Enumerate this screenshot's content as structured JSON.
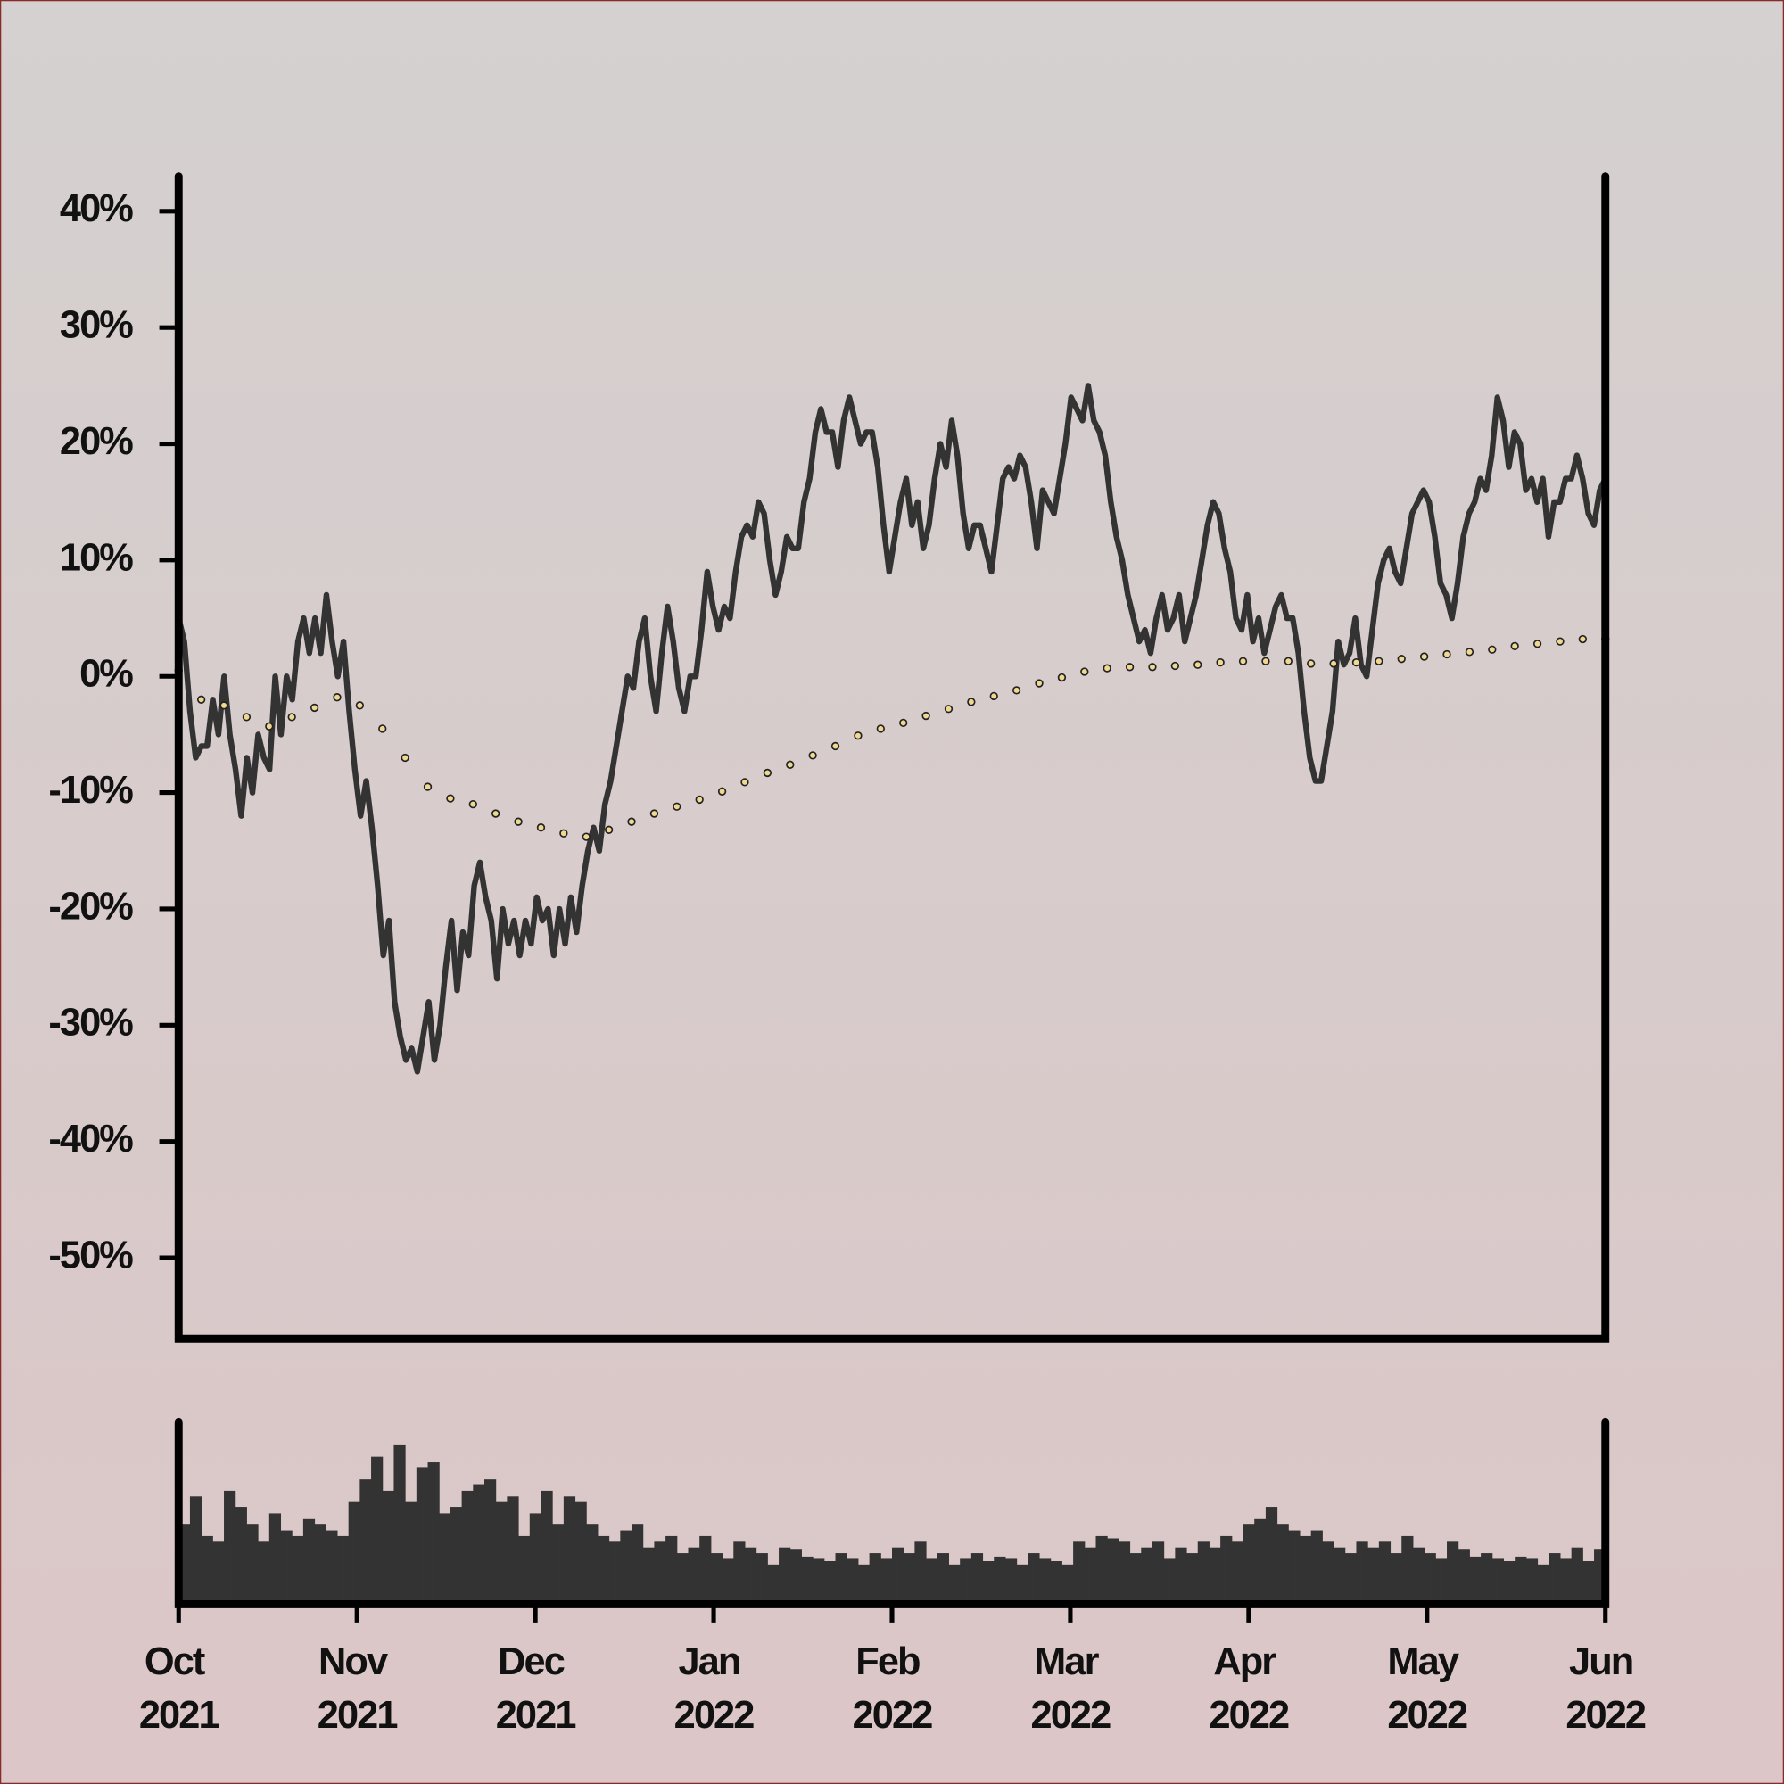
{
  "chart_data": [
    {
      "type": "line",
      "xlim": [
        "2021-10",
        "2022-06"
      ],
      "ylim": [
        -57,
        43
      ],
      "yticks": [
        {
          "value": 40,
          "label": "40%"
        },
        {
          "value": 30,
          "label": "30%"
        },
        {
          "value": 20,
          "label": "20%"
        },
        {
          "value": 10,
          "label": "10%"
        },
        {
          "value": 0,
          "label": "0%"
        },
        {
          "value": -10,
          "label": "-10%"
        },
        {
          "value": -20,
          "label": "-20%"
        },
        {
          "value": -30,
          "label": "-30%"
        },
        {
          "value": -40,
          "label": "-40%"
        },
        {
          "value": -50,
          "label": "-50%"
        }
      ],
      "series": [
        {
          "color": "#333333",
          "style": "solid",
          "values": [
            5,
            3,
            -3,
            -7,
            -6,
            -6,
            -2,
            -5,
            0,
            -5,
            -8,
            -12,
            -7,
            -10,
            -5,
            -7,
            -8,
            0,
            -5,
            0,
            -2,
            3,
            5,
            2,
            5,
            2,
            7,
            3,
            0,
            3,
            -3,
            -8,
            -12,
            -9,
            -13,
            -18,
            -24,
            -21,
            -28,
            -31,
            -33,
            -32,
            -34,
            -31,
            -28,
            -33,
            -30,
            -25,
            -21,
            -27,
            -22,
            -24,
            -18,
            -16,
            -19,
            -21,
            -26,
            -20,
            -23,
            -21,
            -24,
            -21,
            -23,
            -19,
            -21,
            -20,
            -24,
            -20,
            -23,
            -19,
            -22,
            -18,
            -15,
            -13,
            -15,
            -11,
            -9,
            -6,
            -3,
            0,
            -1,
            3,
            5,
            0,
            -3,
            2,
            6,
            3,
            -1,
            -3,
            0,
            0,
            4,
            9,
            6,
            4,
            6,
            5,
            9,
            12,
            13,
            12,
            15,
            14,
            10,
            7,
            9,
            12,
            11,
            11,
            15,
            17,
            21,
            23,
            21,
            21,
            18,
            22,
            24,
            22,
            20,
            21,
            21,
            18,
            13,
            9,
            12,
            15,
            17,
            13,
            15,
            11,
            13,
            17,
            20,
            18,
            22,
            19,
            14,
            11,
            13,
            13,
            11,
            9,
            13,
            17,
            18,
            17,
            19,
            18,
            15,
            11,
            16,
            15,
            14,
            17,
            20,
            24,
            23,
            22,
            25,
            22,
            21,
            19,
            15,
            12,
            10,
            7,
            5,
            3,
            4,
            2,
            5,
            7,
            4,
            5,
            7,
            3,
            5,
            7,
            10,
            13,
            15,
            14,
            11,
            9,
            5,
            4,
            7,
            3,
            5,
            2,
            4,
            6,
            7,
            5,
            5,
            2,
            -3,
            -7,
            -9,
            -9,
            -6,
            -3,
            3,
            1,
            2,
            5,
            1,
            0,
            4,
            8,
            10,
            11,
            9,
            8,
            11,
            14,
            15,
            16,
            15,
            12,
            8,
            7,
            5,
            8,
            12,
            14,
            15,
            17,
            16,
            19,
            24,
            22,
            18,
            21,
            20,
            16,
            17,
            15,
            17,
            12,
            15,
            15,
            17,
            17,
            19,
            17,
            14,
            13,
            16,
            17
          ]
        },
        {
          "color": "#f0d890",
          "style": "dotted",
          "values": [
            0.5,
            -2,
            -2.5,
            -3.5,
            -4.3,
            -3.5,
            -2.7,
            -1.8,
            -2.5,
            -4.5,
            -7,
            -9.5,
            -10.5,
            -11,
            -11.8,
            -12.5,
            -13,
            -13.5,
            -13.8,
            -13.2,
            -12.5,
            -11.8,
            -11.2,
            -10.6,
            -9.9,
            -9.1,
            -8.3,
            -7.6,
            -6.8,
            -6,
            -5.1,
            -4.5,
            -4,
            -3.4,
            -2.8,
            -2.2,
            -1.7,
            -1.2,
            -0.6,
            -0.1,
            0.4,
            0.7,
            0.8,
            0.8,
            0.9,
            1,
            1.2,
            1.3,
            1.3,
            1.3,
            1.1,
            1.1,
            1.2,
            1.3,
            1.5,
            1.7,
            1.9,
            2.1,
            2.3,
            2.6,
            2.8,
            3,
            3.2,
            3.2
          ]
        }
      ]
    },
    {
      "type": "bar",
      "xlim": [
        "2021-10",
        "2022-06"
      ],
      "ylim": [
        0,
        160
      ],
      "color": "#333333",
      "xticks": [
        {
          "value": "2021-10",
          "label": "Oct 2021"
        },
        {
          "value": "2021-11",
          "label": "Nov 2021"
        },
        {
          "value": "2021-12",
          "label": "Dec 2021"
        },
        {
          "value": "2022-01",
          "label": "Jan 2022"
        },
        {
          "value": "2022-02",
          "label": "Feb 2022"
        },
        {
          "value": "2022-03",
          "label": "Mar 2022"
        },
        {
          "value": "2022-04",
          "label": "Apr 2022"
        },
        {
          "value": "2022-05",
          "label": "May 2022"
        },
        {
          "value": "2022-06",
          "label": "Jun 2022"
        }
      ],
      "values": [
        70,
        95,
        60,
        55,
        100,
        85,
        70,
        55,
        80,
        65,
        60,
        75,
        70,
        65,
        60,
        90,
        110,
        130,
        100,
        140,
        90,
        120,
        125,
        80,
        85,
        100,
        105,
        110,
        90,
        95,
        60,
        80,
        100,
        70,
        95,
        90,
        70,
        60,
        55,
        65,
        70,
        50,
        55,
        60,
        45,
        50,
        60,
        45,
        40,
        55,
        50,
        45,
        35,
        50,
        48,
        42,
        40,
        38,
        45,
        40,
        35,
        45,
        40,
        50,
        45,
        55,
        40,
        45,
        35,
        40,
        45,
        38,
        42,
        40,
        35,
        45,
        40,
        38,
        35,
        55,
        50,
        60,
        58,
        55,
        45,
        50,
        55,
        40,
        50,
        45,
        55,
        50,
        60,
        55,
        70,
        75,
        85,
        70,
        65,
        60,
        65,
        55,
        50,
        45,
        55,
        50,
        55,
        45,
        60,
        50,
        45,
        40,
        55,
        48,
        42,
        45,
        40,
        38,
        42,
        40,
        35,
        45,
        40,
        50,
        38,
        48
      ]
    }
  ]
}
